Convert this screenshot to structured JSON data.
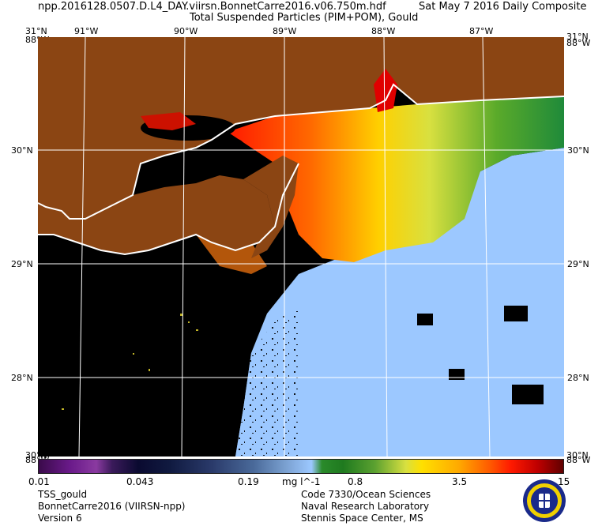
{
  "header": {
    "file_name": "npp.2016128.0507.D.L4_DAY.viirsn.BonnetCarre2016.v06.750m.hdf",
    "date_label": "Sat May  7 2016 Daily Composite",
    "product_title": "Total Suspended Particles (PIM+POM), Gould"
  },
  "map": {
    "top_lon_labels": [
      "91°W",
      "90°W",
      "89°W",
      "88°W",
      "87°W"
    ],
    "corner_labels": {
      "top_left_lat": "31°N",
      "top_left_lon": "88°W",
      "top_right_lat": "31°N",
      "top_right_lon": "88°W",
      "bottom_left_lat": "30°N",
      "bottom_left_lon": "88°W",
      "bottom_right_lat": "30°N",
      "bottom_right_lon": "88°W"
    },
    "left_lat_labels": [
      "30°N",
      "29°N",
      "28°N"
    ],
    "right_lat_labels": [
      "30°N",
      "29°N",
      "28°N"
    ],
    "colors": {
      "land": "#8b4513",
      "no_data": "#000000",
      "coastline": "#ffffff",
      "grid": "#ffffff"
    }
  },
  "colorbar": {
    "tick_labels": [
      "0.01",
      "0.043",
      "0.19",
      "0.8",
      "3.5",
      "15"
    ],
    "unit": "mg l^-1"
  },
  "footer": {
    "left": [
      "TSS_gould",
      "BonnetCarre2016 (VIIRSN-npp)",
      "Version 6"
    ],
    "right": [
      "Code 7330/Ocean Sciences",
      "Naval Research Laboratory",
      "Stennis Space Center, MS"
    ]
  },
  "logo": {
    "icon": "nrl-seal-icon"
  }
}
